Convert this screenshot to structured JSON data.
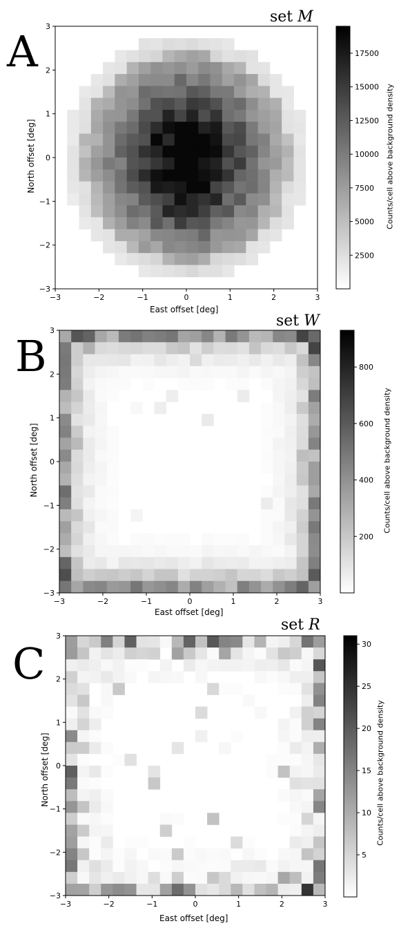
{
  "chart_data": [
    {
      "type": "heatmap",
      "panel_letter": "A",
      "set_label_prefix": "set",
      "set_label_symbol": "M",
      "xlabel": "East offset [deg]",
      "ylabel": "North offset [deg]",
      "xlim": [
        -3,
        3
      ],
      "ylim": [
        -3,
        3
      ],
      "xticks": [
        "−3",
        "−2",
        "−1",
        "0",
        "1",
        "2",
        "3"
      ],
      "yticks": [
        "−3",
        "−2",
        "−1",
        "0",
        "1",
        "2",
        "3"
      ],
      "colorbar_label": "Counts/cell above background density",
      "colorbar_range": [
        0,
        19500
      ],
      "colorbar_ticks": [
        "2500",
        "5000",
        "7500",
        "10000",
        "12500",
        "15000",
        "17500"
      ],
      "colorbar_tick_values": [
        2500,
        5000,
        7500,
        10000,
        12500,
        15000,
        17500
      ],
      "colormap": "gray_r",
      "grid_bins": 22,
      "pattern": "center",
      "peak": 19000
    },
    {
      "type": "heatmap",
      "panel_letter": "B",
      "set_label_prefix": "set",
      "set_label_symbol": "W",
      "xlabel": "East offset [deg]",
      "ylabel": "North offset [deg]",
      "xlim": [
        -3,
        3
      ],
      "ylim": [
        -3,
        3
      ],
      "xticks": [
        "−3",
        "−2",
        "−1",
        "0",
        "1",
        "2",
        "3"
      ],
      "yticks": [
        "−3",
        "−2",
        "−1",
        "0",
        "1",
        "2",
        "3"
      ],
      "colorbar_label": "Counts/cell above background density",
      "colorbar_range": [
        0,
        930
      ],
      "colorbar_ticks": [
        "200",
        "400",
        "600",
        "800"
      ],
      "colorbar_tick_values": [
        200,
        400,
        600,
        800
      ],
      "colormap": "gray_r",
      "grid_bins": 22,
      "pattern": "edge",
      "peak": 900
    },
    {
      "type": "heatmap",
      "panel_letter": "C",
      "set_label_prefix": "set",
      "set_label_symbol": "R",
      "xlabel": "East offset [deg]",
      "ylabel": "North offset [deg]",
      "xlim": [
        -3,
        3
      ],
      "ylim": [
        -3,
        3
      ],
      "xticks": [
        "−3",
        "−2",
        "−1",
        "0",
        "1",
        "2",
        "3"
      ],
      "yticks": [
        "−3",
        "−2",
        "−1",
        "0",
        "1",
        "2",
        "3"
      ],
      "colorbar_label": "Counts/cell above background density",
      "colorbar_range": [
        0,
        31
      ],
      "colorbar_ticks": [
        "5",
        "10",
        "15",
        "20",
        "25",
        "30"
      ],
      "colorbar_tick_values": [
        5,
        10,
        15,
        20,
        25,
        30
      ],
      "colormap": "gray_r",
      "grid_bins": 22,
      "pattern": "edge-sparse",
      "peak": 30
    }
  ]
}
